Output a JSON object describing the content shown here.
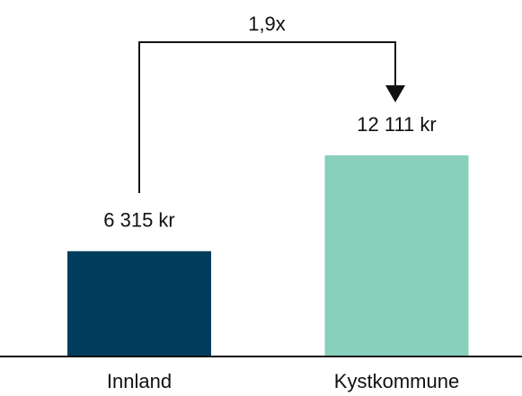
{
  "chart_data": {
    "type": "bar",
    "categories": [
      "Innland",
      "Kystkommune"
    ],
    "values": [
      6315,
      12111
    ],
    "value_labels": [
      "6 315 kr",
      "12 111 kr"
    ],
    "colors": [
      "#003d5c",
      "#88cfbc"
    ],
    "annotation": "1,9x"
  }
}
